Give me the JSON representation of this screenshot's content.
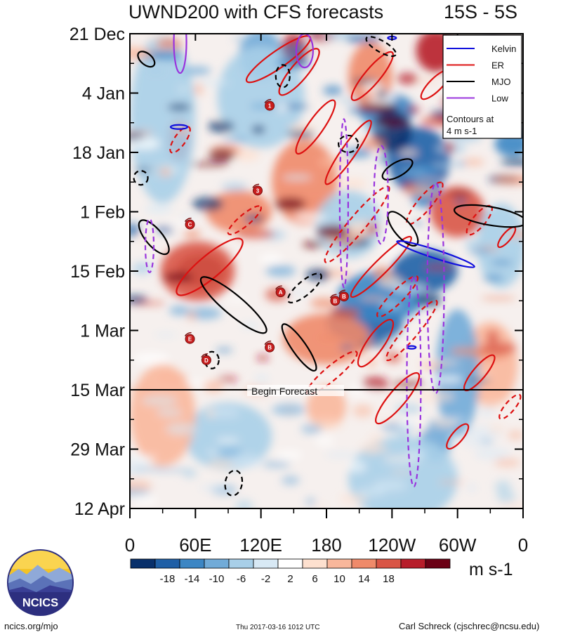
{
  "title": {
    "left": "UWND200 with CFS forecasts",
    "right": "15S - 5S"
  },
  "chart_data": {
    "type": "heatmap",
    "title": "UWND200 with CFS forecasts",
    "subtitle": "15S - 5S",
    "x_ticks": [
      "0",
      "60E",
      "120E",
      "180",
      "120W",
      "60W",
      "0"
    ],
    "x_tick_values": [
      0,
      60,
      120,
      180,
      240,
      300,
      360
    ],
    "xlim": [
      0,
      360
    ],
    "y_ticks": [
      "21 Dec",
      "4 Jan",
      "18 Jan",
      "1 Feb",
      "15 Feb",
      "1 Mar",
      "15 Mar",
      "29 Mar",
      "12 Apr"
    ],
    "y_tick_values": [
      0,
      14,
      28,
      42,
      56,
      70,
      84,
      98,
      112
    ],
    "ylim": [
      0,
      112
    ],
    "forecast_line_label": "Begin Forecast",
    "forecast_line_value": 84,
    "legend": {
      "placement": "top-right",
      "entries": [
        {
          "name": "Kelvin",
          "color": "#1010dd"
        },
        {
          "name": "ER",
          "color": "#dd1111"
        },
        {
          "name": "MJO",
          "color": "#000000"
        },
        {
          "name": "Low",
          "color": "#9933dd"
        }
      ],
      "note_line1": "Contours at",
      "note_line2": "4 m s-1"
    },
    "colorbar": {
      "labels": [
        "-18",
        "-14",
        "-10",
        "-6",
        "-2",
        "2",
        "6",
        "10",
        "14",
        "18"
      ],
      "colors": [
        "#08306b",
        "#1f5fa6",
        "#3c86c4",
        "#71abd8",
        "#a8cfe8",
        "#d8e9f5",
        "#ffffff",
        "#fde0cf",
        "#f9b79b",
        "#ef8a6a",
        "#d95545",
        "#b71d2a",
        "#6b0015"
      ],
      "units": "m s-1"
    },
    "mjo_contours_at": 4
  },
  "footer": {
    "left": "ncics.org/mjo",
    "center": "Thu 2017-03-16 1012 UTC",
    "right": "Carl Schreck (cjschrec@ncsu.edu)",
    "logo_text": "NCICS"
  }
}
